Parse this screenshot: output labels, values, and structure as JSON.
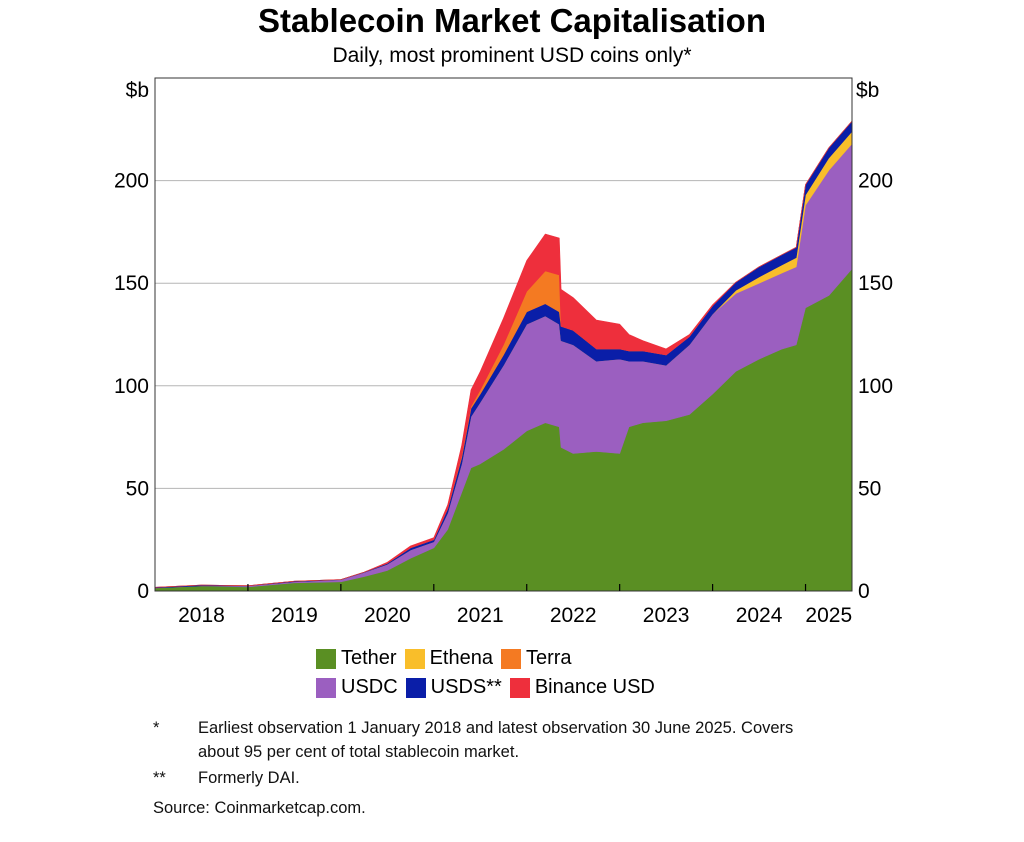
{
  "chart_data": {
    "type": "area",
    "stacked": true,
    "title": "Stablecoin Market Capitalisation",
    "subtitle": "Daily, most prominent USD coins only*",
    "y_unit_left": "$b",
    "y_unit_right": "$b",
    "ylim": [
      0,
      250
    ],
    "yticks": [
      0,
      50,
      100,
      150,
      200
    ],
    "xlim": [
      2018.0,
      2025.5
    ],
    "xtick_labels": [
      "2018",
      "2019",
      "2020",
      "2021",
      "2022",
      "2023",
      "2024",
      "2025"
    ],
    "grid": true,
    "legend_position": "bottom",
    "x": [
      2018.0,
      2018.5,
      2019.0,
      2019.5,
      2020.0,
      2020.25,
      2020.5,
      2020.75,
      2021.0,
      2021.15,
      2021.3,
      2021.4,
      2021.5,
      2021.75,
      2022.0,
      2022.2,
      2022.35,
      2022.37,
      2022.5,
      2022.75,
      2023.0,
      2023.1,
      2023.25,
      2023.5,
      2023.75,
      2024.0,
      2024.25,
      2024.5,
      2024.75,
      2024.9,
      2025.0,
      2025.25,
      2025.5
    ],
    "series": [
      {
        "name": "Tether",
        "color": "#5a8f23",
        "values": [
          1.5,
          2.5,
          2,
          4,
          4.5,
          7,
          10,
          16,
          21,
          30,
          48,
          60,
          62,
          69,
          78,
          82,
          80,
          70,
          67,
          68,
          67,
          80,
          82,
          83,
          86,
          96,
          107,
          113,
          118,
          120,
          138,
          144,
          157
        ]
      },
      {
        "name": "USDC",
        "color": "#9b5fc0",
        "values": [
          0,
          0,
          0.5,
          0.5,
          1,
          2,
          3,
          4,
          3,
          8,
          14,
          25,
          30,
          41,
          52,
          52,
          50,
          52,
          53,
          44,
          46,
          32,
          30,
          27,
          34,
          39,
          38,
          37,
          37,
          38,
          50,
          61,
          61
        ]
      },
      {
        "name": "Ethena",
        "color": "#f9be2a",
        "values": [
          0,
          0,
          0,
          0,
          0,
          0,
          0,
          0,
          0,
          0,
          0,
          0,
          0,
          0,
          0,
          0,
          0,
          0,
          0,
          0,
          0,
          0,
          0,
          0,
          0,
          0,
          1.5,
          3,
          4,
          4.5,
          5,
          6,
          6
        ]
      },
      {
        "name": "USDS**",
        "color": "#0a1ea8",
        "values": [
          0.3,
          0.4,
          0.1,
          0.3,
          0.1,
          0.2,
          0.5,
          1,
          1,
          2,
          3,
          4,
          4,
          5,
          6,
          6,
          6,
          7,
          7,
          6,
          5,
          5,
          5,
          5,
          4,
          4,
          4,
          5,
          5,
          5,
          5,
          5,
          5
        ]
      },
      {
        "name": "Terra",
        "color": "#f47a22",
        "values": [
          0,
          0,
          0,
          0,
          0,
          0,
          0,
          0,
          0,
          0,
          1,
          1,
          2,
          5,
          10,
          16,
          18,
          0,
          0,
          0,
          0,
          0,
          0,
          0,
          0,
          0,
          0,
          0,
          0,
          0,
          0,
          0,
          0
        ]
      },
      {
        "name": "Binance USD",
        "color": "#ee2f3c",
        "values": [
          0,
          0,
          0,
          0,
          0,
          0,
          0.5,
          1,
          1,
          2,
          5,
          8,
          9,
          13,
          15,
          18,
          18,
          18,
          16,
          14,
          12,
          8,
          5,
          3,
          1,
          0.5,
          0,
          0,
          0,
          0,
          0,
          0,
          0
        ]
      }
    ],
    "legend_rows": [
      [
        "Tether",
        "Ethena",
        "Terra"
      ],
      [
        "USDC",
        "USDS**",
        "Binance USD"
      ]
    ]
  },
  "notes": [
    {
      "marker": "*",
      "text": "Earliest observation 1 January 2018 and latest observation 30 June 2025. Covers about 95 per cent of total stablecoin market."
    },
    {
      "marker": "**",
      "text": "Formerly DAI."
    }
  ],
  "source": "Source: Coinmarketcap.com."
}
